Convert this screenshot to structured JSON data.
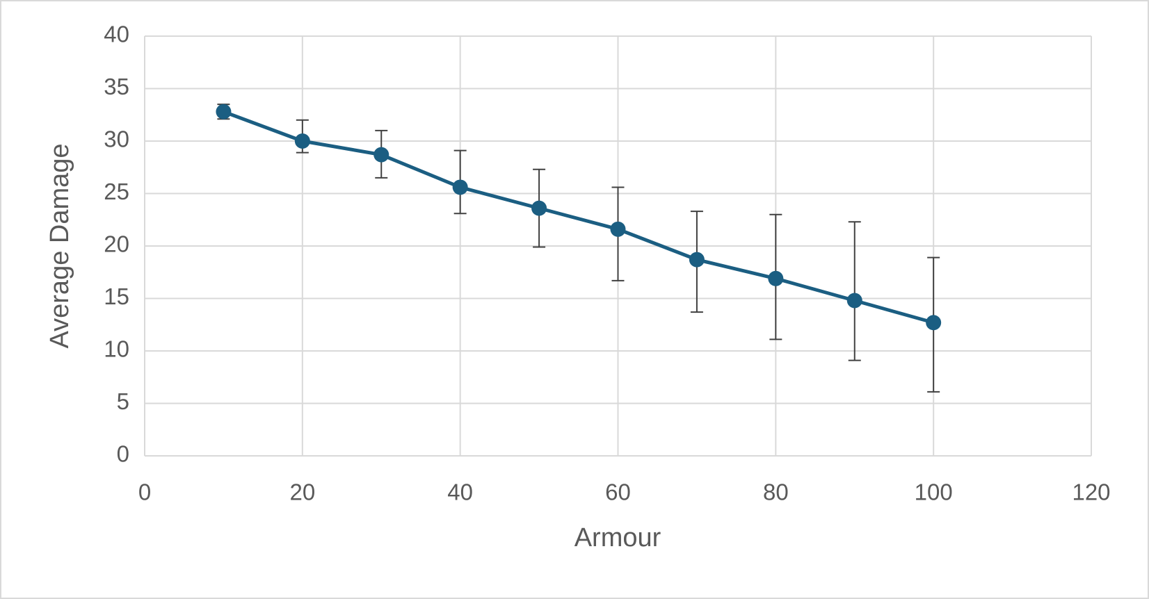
{
  "chart_data": {
    "type": "line",
    "xlabel": "Armour",
    "ylabel": "Average Damage",
    "x": [
      10,
      20,
      30,
      40,
      50,
      60,
      70,
      80,
      90,
      100
    ],
    "series": [
      {
        "color": "#1b5e82",
        "values": [
          32.8,
          30.0,
          28.7,
          25.6,
          23.6,
          21.6,
          18.7,
          16.9,
          14.8,
          12.7
        ],
        "error_plus": [
          0.7,
          2.0,
          2.3,
          3.5,
          3.7,
          4.0,
          4.6,
          6.1,
          7.5,
          6.2
        ],
        "error_minus": [
          0.7,
          1.1,
          2.2,
          2.5,
          3.7,
          4.9,
          5.0,
          5.8,
          5.7,
          6.6
        ]
      }
    ],
    "xlim": [
      0,
      120
    ],
    "xticks": [
      0,
      20,
      40,
      60,
      80,
      100,
      120
    ],
    "ylim": [
      0,
      40
    ],
    "yticks": [
      0,
      5,
      10,
      15,
      20,
      25,
      30,
      35,
      40
    ],
    "grid": true
  }
}
